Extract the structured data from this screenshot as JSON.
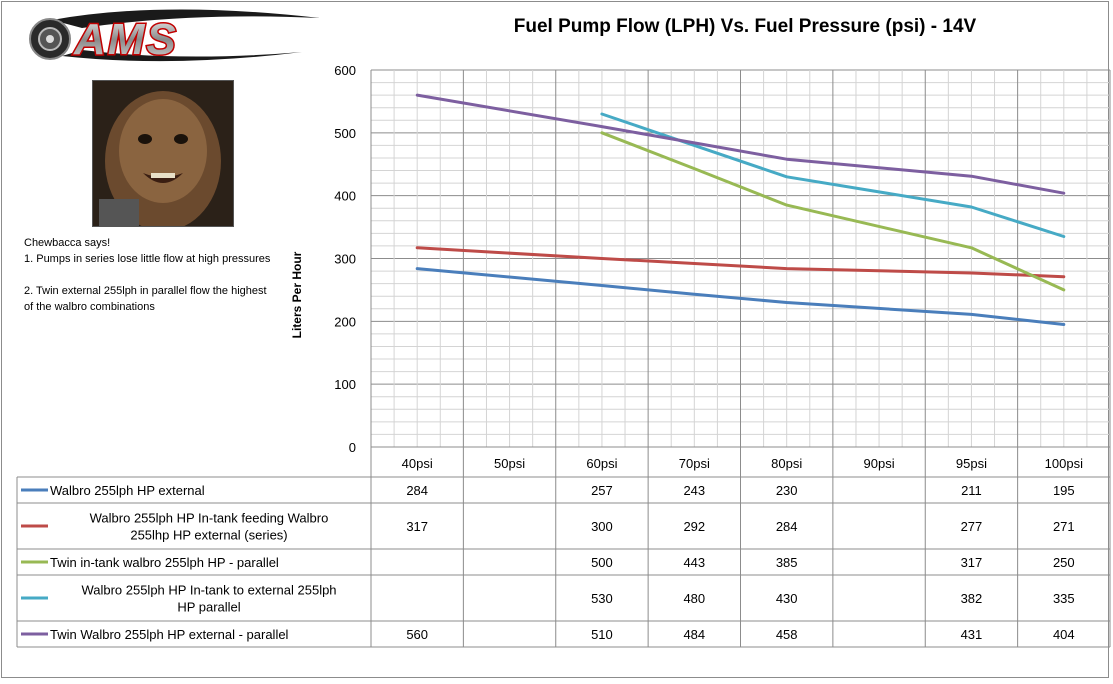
{
  "chart_data": {
    "type": "line",
    "title": "Fuel Pump Flow (LPH) Vs. Fuel Pressure (psi) - 14V",
    "ylabel": "Liters Per Hour",
    "xlabel": "",
    "ylim": [
      0,
      600
    ],
    "yticks": [
      0,
      100,
      200,
      300,
      400,
      500,
      600
    ],
    "categories": [
      "40psi",
      "50psi",
      "60psi",
      "70psi",
      "80psi",
      "90psi",
      "95psi",
      "100psi"
    ],
    "grid": true,
    "legend_placement": "bottom data table",
    "series": [
      {
        "name": "Walbro 255lph HP external",
        "color": "#4a7ebb",
        "values": [
          284,
          null,
          257,
          243,
          230,
          null,
          211,
          195
        ]
      },
      {
        "name": "Walbro 255lph HP In-tank feeding Walbro 255lhp HP external (series)",
        "color": "#be4b48",
        "values": [
          317,
          null,
          300,
          292,
          284,
          null,
          277,
          271
        ]
      },
      {
        "name": "Twin in-tank walbro 255lph HP - parallel",
        "color": "#98b954",
        "values": [
          null,
          null,
          500,
          443,
          385,
          null,
          317,
          250
        ]
      },
      {
        "name": "Walbro 255lph HP In-tank to external 255lph HP parallel",
        "color": "#46aac5",
        "values": [
          null,
          null,
          530,
          480,
          430,
          null,
          382,
          335
        ]
      },
      {
        "name": "Twin Walbro 255lph HP external - parallel",
        "color": "#7d5fa0",
        "values": [
          560,
          null,
          510,
          484,
          458,
          null,
          431,
          404
        ]
      }
    ]
  },
  "logo_text": "AMS",
  "photo_alt": "Chewbacca",
  "note": {
    "heading": "Chewbacca says!",
    "line1": "1.  Pumps in series lose little flow at high pressures",
    "line2": "2.  Twin external 255lph in parallel flow the highest of the walbro combinations"
  }
}
